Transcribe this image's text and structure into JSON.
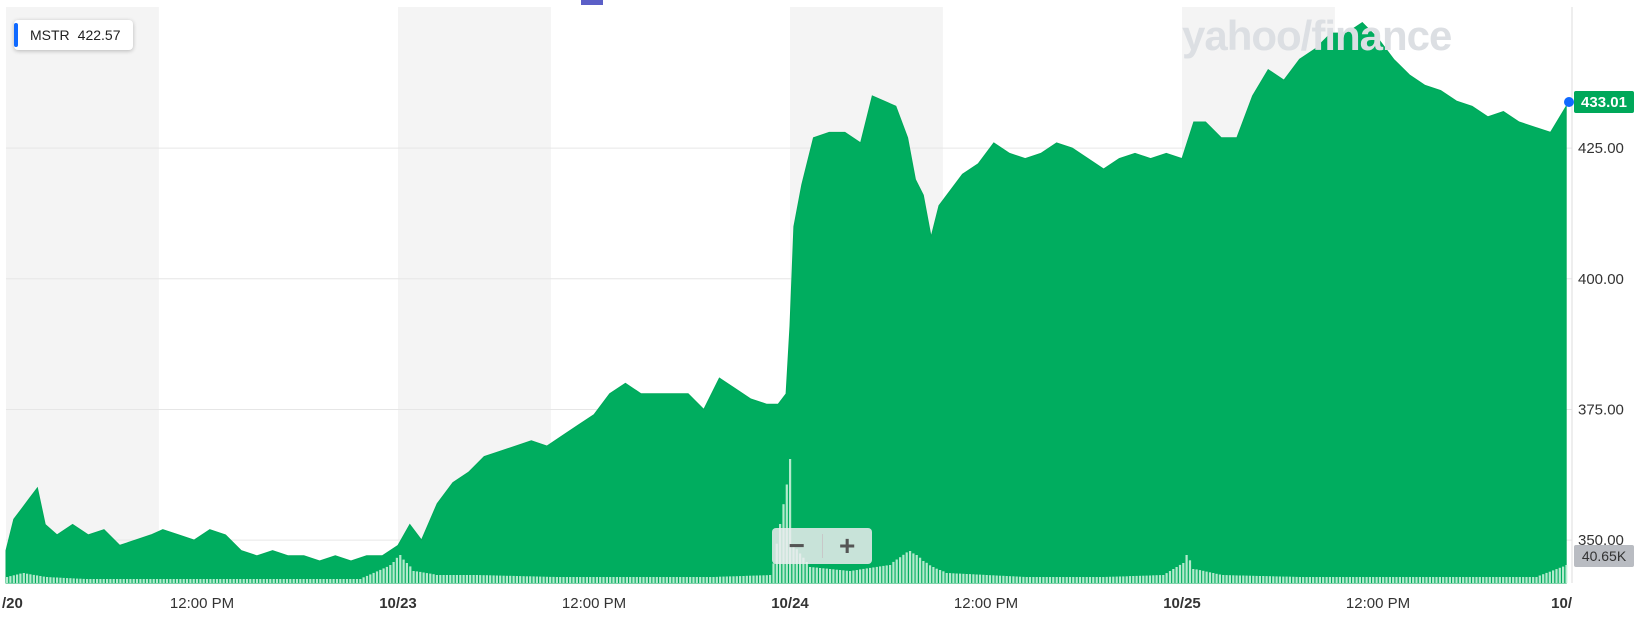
{
  "chart_data": {
    "type": "area",
    "ticker": "MSTR",
    "prev_close": "422.57",
    "last_price_label": "433.01",
    "last_volume_label": "40.65K",
    "watermark": "yahoo/finance",
    "y_ticks": [
      {
        "value": 425,
        "label": "425.00"
      },
      {
        "value": 400,
        "label": "400.00"
      },
      {
        "value": 375,
        "label": "375.00"
      },
      {
        "value": 350,
        "label": "350.00"
      }
    ],
    "ylim": [
      341.8,
      452
    ],
    "x_ticks": [
      {
        "t": 0.0,
        "label": "/20"
      },
      {
        "t": 0.5,
        "label": "12:00 PM"
      },
      {
        "t": 1.0,
        "label": "10/23"
      },
      {
        "t": 1.5,
        "label": "12:00 PM"
      },
      {
        "t": 2.0,
        "label": "10/24"
      },
      {
        "t": 2.5,
        "label": "12:00 PM"
      },
      {
        "t": 3.0,
        "label": "10/25"
      },
      {
        "t": 3.5,
        "label": "12:00 PM"
      },
      {
        "t": 4.0,
        "label": "10/"
      }
    ],
    "sessions": [
      [
        0,
        0.39
      ],
      [
        1,
        1.39
      ],
      [
        2,
        2.39
      ],
      [
        3,
        3.39
      ]
    ],
    "price_series": [
      [
        0.0,
        348
      ],
      [
        0.02,
        354
      ],
      [
        0.04,
        356
      ],
      [
        0.06,
        358
      ],
      [
        0.08,
        360
      ],
      [
        0.1,
        353
      ],
      [
        0.13,
        351
      ],
      [
        0.17,
        353
      ],
      [
        0.21,
        351
      ],
      [
        0.25,
        352
      ],
      [
        0.29,
        349
      ],
      [
        0.33,
        350
      ],
      [
        0.37,
        351
      ],
      [
        0.4,
        352
      ],
      [
        0.44,
        351
      ],
      [
        0.48,
        350
      ],
      [
        0.52,
        352
      ],
      [
        0.56,
        351
      ],
      [
        0.6,
        348
      ],
      [
        0.64,
        347
      ],
      [
        0.68,
        348
      ],
      [
        0.72,
        347
      ],
      [
        0.76,
        347
      ],
      [
        0.8,
        346
      ],
      [
        0.84,
        347
      ],
      [
        0.88,
        346
      ],
      [
        0.92,
        347
      ],
      [
        0.96,
        347
      ],
      [
        1.0,
        349
      ],
      [
        1.03,
        353
      ],
      [
        1.06,
        350
      ],
      [
        1.1,
        357
      ],
      [
        1.14,
        361
      ],
      [
        1.18,
        363
      ],
      [
        1.22,
        366
      ],
      [
        1.26,
        367
      ],
      [
        1.3,
        368
      ],
      [
        1.34,
        369
      ],
      [
        1.38,
        368
      ],
      [
        1.42,
        370
      ],
      [
        1.46,
        372
      ],
      [
        1.5,
        374
      ],
      [
        1.54,
        378
      ],
      [
        1.58,
        380
      ],
      [
        1.62,
        378
      ],
      [
        1.66,
        378
      ],
      [
        1.7,
        378
      ],
      [
        1.74,
        378
      ],
      [
        1.78,
        375
      ],
      [
        1.82,
        381
      ],
      [
        1.86,
        379
      ],
      [
        1.9,
        377
      ],
      [
        1.94,
        376
      ],
      [
        1.97,
        376
      ],
      [
        1.99,
        378
      ],
      [
        2.0,
        391
      ],
      [
        2.01,
        410
      ],
      [
        2.03,
        418
      ],
      [
        2.06,
        427
      ],
      [
        2.1,
        428
      ],
      [
        2.14,
        428
      ],
      [
        2.18,
        426
      ],
      [
        2.21,
        435
      ],
      [
        2.24,
        434
      ],
      [
        2.27,
        433
      ],
      [
        2.3,
        427
      ],
      [
        2.32,
        419
      ],
      [
        2.34,
        416
      ],
      [
        2.36,
        408
      ],
      [
        2.38,
        414
      ],
      [
        2.4,
        416
      ],
      [
        2.44,
        420
      ],
      [
        2.48,
        422
      ],
      [
        2.52,
        426
      ],
      [
        2.56,
        424
      ],
      [
        2.6,
        423
      ],
      [
        2.64,
        424
      ],
      [
        2.68,
        426
      ],
      [
        2.72,
        425
      ],
      [
        2.76,
        423
      ],
      [
        2.8,
        421
      ],
      [
        2.84,
        423
      ],
      [
        2.88,
        424
      ],
      [
        2.92,
        423
      ],
      [
        2.96,
        424
      ],
      [
        3.0,
        423
      ],
      [
        3.03,
        430
      ],
      [
        3.06,
        430
      ],
      [
        3.1,
        427
      ],
      [
        3.14,
        427
      ],
      [
        3.18,
        435
      ],
      [
        3.22,
        440
      ],
      [
        3.26,
        438
      ],
      [
        3.3,
        442
      ],
      [
        3.34,
        444
      ],
      [
        3.38,
        447
      ],
      [
        3.42,
        447
      ],
      [
        3.46,
        449
      ],
      [
        3.5,
        446
      ],
      [
        3.54,
        442
      ],
      [
        3.58,
        439
      ],
      [
        3.62,
        437
      ],
      [
        3.66,
        436
      ],
      [
        3.7,
        434
      ],
      [
        3.74,
        433
      ],
      [
        3.78,
        431
      ],
      [
        3.82,
        432
      ],
      [
        3.86,
        430
      ],
      [
        3.9,
        429
      ],
      [
        3.94,
        428
      ],
      [
        3.98,
        433
      ]
    ],
    "volume_series": [
      [
        0.0,
        3
      ],
      [
        0.04,
        5
      ],
      [
        0.1,
        3
      ],
      [
        0.2,
        2
      ],
      [
        0.3,
        2
      ],
      [
        0.5,
        2
      ],
      [
        0.7,
        2
      ],
      [
        0.9,
        2
      ],
      [
        0.98,
        9
      ],
      [
        1.0,
        14
      ],
      [
        1.04,
        6
      ],
      [
        1.1,
        4
      ],
      [
        1.2,
        4
      ],
      [
        1.4,
        3
      ],
      [
        1.6,
        3
      ],
      [
        1.8,
        3
      ],
      [
        1.95,
        4
      ],
      [
        2.0,
        62
      ],
      [
        2.01,
        18
      ],
      [
        2.05,
        8
      ],
      [
        2.15,
        6
      ],
      [
        2.25,
        9
      ],
      [
        2.3,
        16
      ],
      [
        2.32,
        14
      ],
      [
        2.34,
        11
      ],
      [
        2.36,
        8
      ],
      [
        2.4,
        5
      ],
      [
        2.6,
        3
      ],
      [
        2.8,
        3
      ],
      [
        2.95,
        4
      ],
      [
        3.0,
        10
      ],
      [
        3.01,
        14
      ],
      [
        3.03,
        7
      ],
      [
        3.1,
        4
      ],
      [
        3.3,
        3
      ],
      [
        3.5,
        3
      ],
      [
        3.7,
        3
      ],
      [
        3.9,
        3
      ],
      [
        3.98,
        9
      ]
    ]
  },
  "controls": {
    "zoom_out": "−",
    "zoom_in": "+"
  }
}
